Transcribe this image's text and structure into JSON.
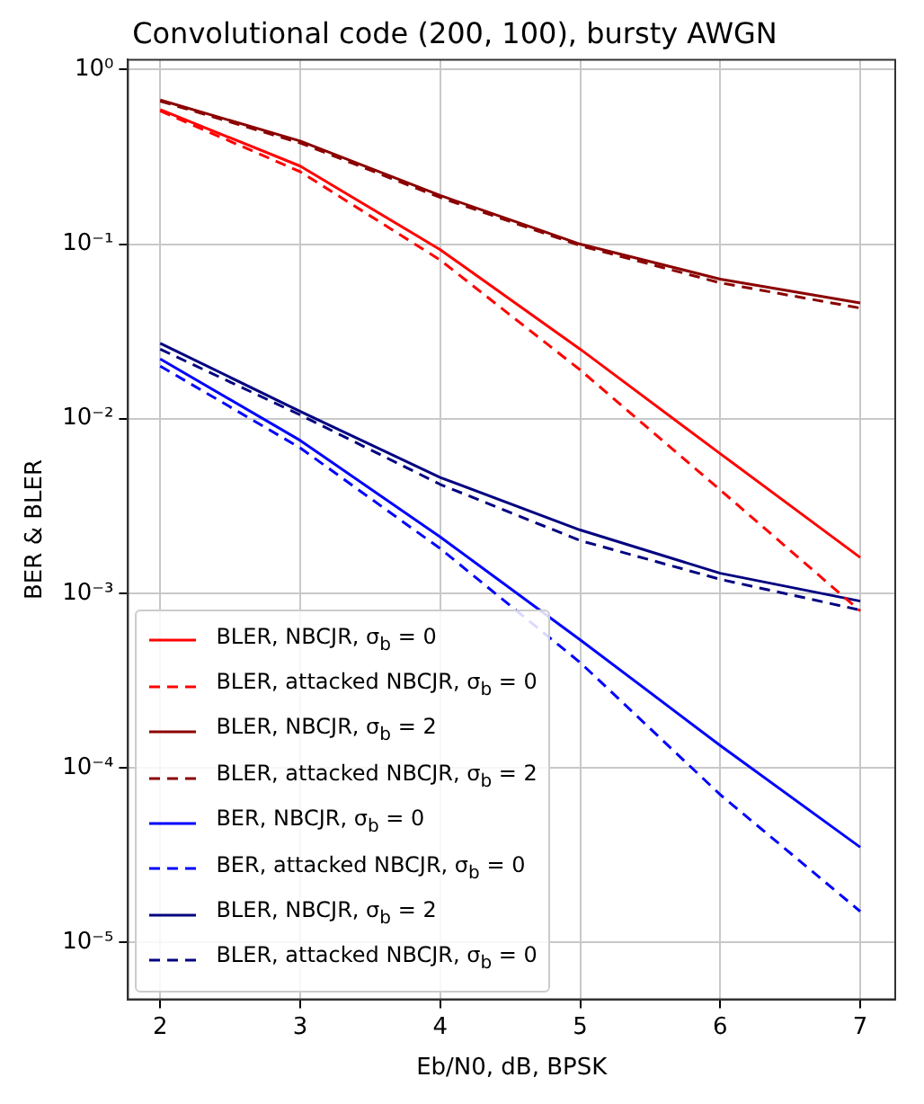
{
  "chart_data": {
    "type": "line",
    "title": "Convolutional code (200, 100), bursty AWGN",
    "xlabel": "Eb/N0, dB, BPSK",
    "ylabel": "BER & BLER",
    "x": [
      2,
      3,
      4,
      5,
      6,
      7
    ],
    "xlim": [
      1.77,
      7.25
    ],
    "xticks": [
      2,
      3,
      4,
      5,
      6,
      7
    ],
    "ylim": [
      4.7e-06,
      1.14
    ],
    "log": "y",
    "yticks": [
      {
        "value": 1,
        "label": "10⁰"
      },
      {
        "value": 0.1,
        "label": "10⁻¹"
      },
      {
        "value": 0.01,
        "label": "10⁻²"
      },
      {
        "value": 0.001,
        "label": "10⁻³"
      },
      {
        "value": 0.0001,
        "label": "10⁻⁴"
      },
      {
        "value": 1e-05,
        "label": "10⁻⁵"
      }
    ],
    "grid": true,
    "legend": "bottom left",
    "marker": "none",
    "series": [
      {
        "name": "BLER, NBCJR, σ$_{b}$ = 0",
        "color": "#ff0000",
        "line_style": "solid",
        "values": [
          0.59,
          0.28,
          0.093,
          0.025,
          0.0063,
          0.0016
        ]
      },
      {
        "name": "BLER, attacked NBCJR, σ$_{b}$ = 0",
        "color": "#ff0000",
        "line_style": "dashed",
        "values": [
          0.58,
          0.26,
          0.081,
          0.019,
          0.0039,
          0.00079
        ]
      },
      {
        "name": "BLER, NBCJR, σ$_{b}$ = 2",
        "color": "#8b0000",
        "line_style": "solid",
        "values": [
          0.67,
          0.39,
          0.19,
          0.1,
          0.063,
          0.046
        ]
      },
      {
        "name": "BLER, attacked NBCJR, σ$_{b}$ = 2",
        "color": "#8b0000",
        "line_style": "dashed",
        "values": [
          0.66,
          0.38,
          0.185,
          0.098,
          0.06,
          0.043
        ]
      },
      {
        "name": "BER, NBCJR, σ$_{b}$ = 0",
        "color": "#0000ff",
        "line_style": "solid",
        "values": [
          0.022,
          0.0075,
          0.0021,
          0.00054,
          0.000134,
          3.5e-05
        ]
      },
      {
        "name": "BER, attacked NBCJR, σ$_{b}$ = 0",
        "color": "#0000ff",
        "line_style": "dashed",
        "values": [
          0.02,
          0.0068,
          0.0018,
          0.0004,
          7e-05,
          1.5e-05
        ]
      },
      {
        "name": "BLER, NBCJR, σ$_{b}$ = 2",
        "color": "#000080",
        "line_style": "solid",
        "values": [
          0.027,
          0.011,
          0.0046,
          0.0023,
          0.0013,
          0.0009
        ]
      },
      {
        "name": "BLER, attacked NBCJR, σ$_{b}$ = 0",
        "color": "#000080",
        "line_style": "dashed",
        "values": [
          0.025,
          0.0105,
          0.0042,
          0.002,
          0.0012,
          0.0008
        ]
      }
    ]
  }
}
